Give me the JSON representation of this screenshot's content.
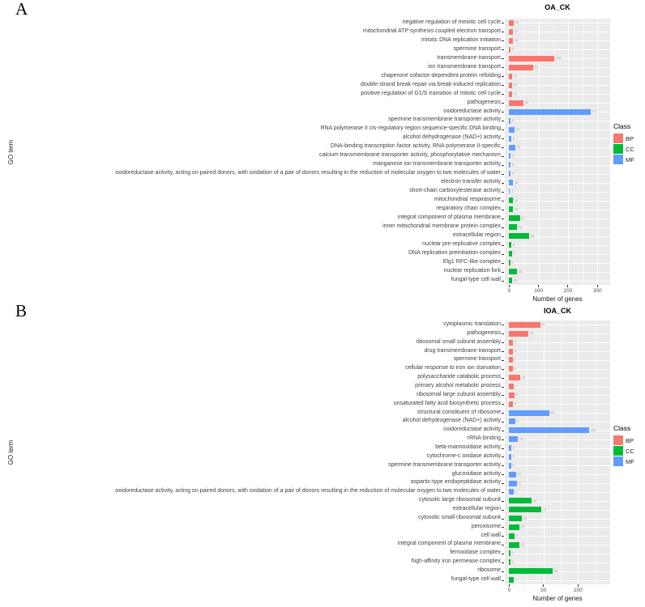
{
  "figure": {
    "panels": [
      {
        "panel_letter": "A"
      },
      {
        "panel_letter": "B"
      }
    ],
    "legend": {
      "title": "Class",
      "items": [
        {
          "label": "BP",
          "color": "#F8766D"
        },
        {
          "label": "CC",
          "color": "#00BA38"
        },
        {
          "label": "MF",
          "color": "#619CFF"
        }
      ]
    },
    "panel_background": "#EBEBEB"
  },
  "chart_data": [
    {
      "type": "bar",
      "orientation": "horizontal",
      "title": "OA_CK",
      "xlabel": "Number of genes",
      "ylabel": "GO term",
      "xlim": [
        0,
        344
      ],
      "x_ticks": [
        0,
        100,
        200,
        300
      ],
      "x_minor_ticks": [
        50,
        150,
        250
      ],
      "grid": true,
      "legend_title": "Class",
      "legend_position": "right",
      "series_colors": {
        "BP": "#F8766D",
        "CC": "#00BA38",
        "MF": "#619CFF"
      },
      "categories": [
        "negative regulation of meiotic cell cycle",
        "mitochondrial ATP synthesis coupled electron transport",
        "mitotic DNA replication initiation",
        "spermine transport",
        "transmembrane transport",
        "ion transmembrane transport",
        "chaperone cofactor-dependent protein refolding",
        "double-strand break repair via break-induced replication",
        "positive regulation of G1/S transition of mitotic cell cycle",
        "pathogenesis",
        "oxidoreductase activity",
        "spermine transmembrane transporter activity",
        "RNA polymerase II cis-regulatory region sequence-specific DNA binding",
        "alcohol dehydrogenase (NAD+) activity",
        "DNA-binding transcription factor activity, RNA polymerase II-specific",
        "calcium transmembrane transporter activity, phosphorylative mechanism",
        "manganese ion transmembrane transporter activity",
        "oxidoreductase activity, acting on paired donors, with oxidation of a pair of donors resulting in the reduction of molecular oxygen to two molecules of water",
        "electron transfer activity",
        "short-chain carboxylesterase activity",
        "mitochondrial respirasome",
        "respiratory chain complex",
        "integral component of plasma membrane",
        "inner mitochondrial membrane protein complex",
        "extracellular region",
        "nuclear pre-replicative complex",
        "DNA replication preinitiation complex",
        "Elg1 RFC-like complex",
        "nuclear replication fork",
        "fungal-type cell wall"
      ],
      "classes": [
        "BP",
        "BP",
        "BP",
        "BP",
        "BP",
        "BP",
        "BP",
        "BP",
        "BP",
        "BP",
        "MF",
        "MF",
        "MF",
        "MF",
        "MF",
        "MF",
        "MF",
        "MF",
        "MF",
        "MF",
        "CC",
        "CC",
        "CC",
        "CC",
        "CC",
        "CC",
        "CC",
        "CC",
        "CC",
        "CC"
      ],
      "values": [
        16,
        12,
        14,
        6,
        154,
        81,
        11,
        10,
        11,
        50,
        277,
        5,
        18,
        8,
        21,
        5,
        5,
        5,
        14,
        3,
        14,
        14,
        37,
        26,
        69,
        8,
        9,
        4,
        28,
        10
      ]
    },
    {
      "type": "bar",
      "orientation": "horizontal",
      "title": "IOA_CK",
      "xlabel": "Number of genes",
      "ylabel": "GO term",
      "xlim": [
        0,
        147
      ],
      "x_ticks": [
        0,
        50,
        100
      ],
      "x_minor_ticks": [
        25,
        75,
        125
      ],
      "grid": true,
      "legend_title": "Class",
      "legend_position": "right",
      "series_colors": {
        "BP": "#F8766D",
        "CC": "#00BA38",
        "MF": "#619CFF"
      },
      "categories": [
        "cytoplasmic translation",
        "pathogenesis",
        "ribosomal small subunit assembly",
        "drug transmembrane transport",
        "spermine transport",
        "cellular response to iron ion starvation",
        "polysaccharide catabolic process",
        "primary alcohol metabolic process",
        "ribosomal large subunit assembly",
        "unsaturated fatty acid biosynthetic process",
        "structural constituent of ribosome",
        "alcohol dehydrogenase (NAD+) activity",
        "oxidoreductase activity",
        "rRNA binding",
        "beta-mannosidase activity",
        "cytochrome-c oxidase activity",
        "spermine transmembrane transporter activity",
        "glucosidase activity",
        "aspartic-type endopeptidase activity",
        "oxidoreductase activity, acting on paired donors, with oxidation of a pair of donors resulting in the reduction of molecular oxygen to two molecules of water",
        "cytosolic large ribosomal subunit",
        "extracellular region",
        "cytosolic small ribosomal subunit",
        "peroxisome",
        "cell wall",
        "integral component of plasma membrane",
        "ferroxidase complex",
        "high-affinity iron permease complex",
        "ribosome",
        "fungal-type cell wall"
      ],
      "classes": [
        "BP",
        "BP",
        "BP",
        "BP",
        "BP",
        "BP",
        "BP",
        "BP",
        "BP",
        "BP",
        "MF",
        "MF",
        "MF",
        "MF",
        "MF",
        "MF",
        "MF",
        "MF",
        "MF",
        "MF",
        "CC",
        "CC",
        "CC",
        "CC",
        "CC",
        "CC",
        "CC",
        "CC",
        "CC",
        "CC"
      ],
      "values": [
        45,
        28,
        6,
        6,
        5,
        5,
        16,
        7,
        8,
        6,
        58,
        9,
        116,
        13,
        3,
        3,
        3,
        10,
        11,
        7,
        33,
        47,
        18,
        15,
        8,
        15,
        2,
        2,
        63,
        7
      ]
    }
  ]
}
